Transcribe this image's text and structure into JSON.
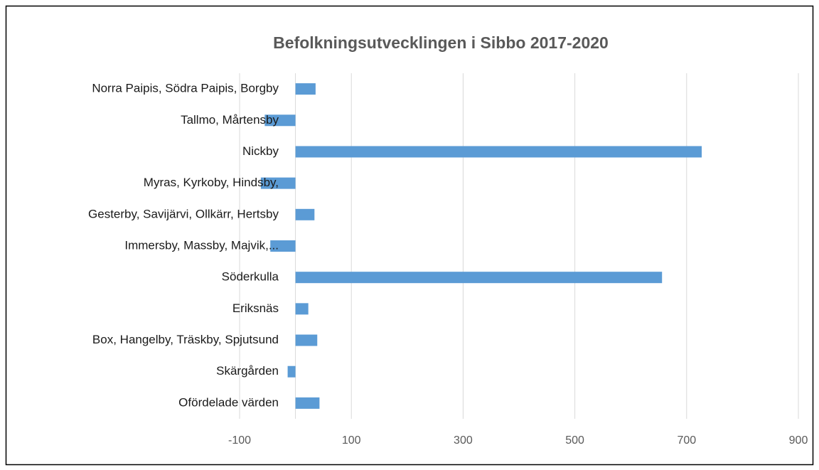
{
  "chart_data": {
    "type": "barh",
    "title": "Befolkningsutvecklingen i Sibbo 2017-2020",
    "categories": [
      "Norra Paipis, Södra Paipis, Borgby",
      "Tallmo, Mårtensby",
      "Nickby",
      "Myras, Kyrkoby, Hindsby,",
      "Gesterby, Savijärvi, Ollkärr, Hertsby",
      "Immersby, Massby, Majvik,...",
      "Söderkulla",
      "Eriksnäs",
      "Box, Hangelby, Träskby, Spjutsund",
      "Skärgården",
      "Ofördelade värden"
    ],
    "values": [
      36,
      -55,
      727,
      -62,
      34,
      -45,
      656,
      23,
      39,
      -14,
      43
    ],
    "color": "#5b9bd5",
    "xlim": [
      -100,
      900
    ],
    "xticks": [
      -100,
      100,
      300,
      500,
      700,
      900
    ],
    "grid": true
  }
}
